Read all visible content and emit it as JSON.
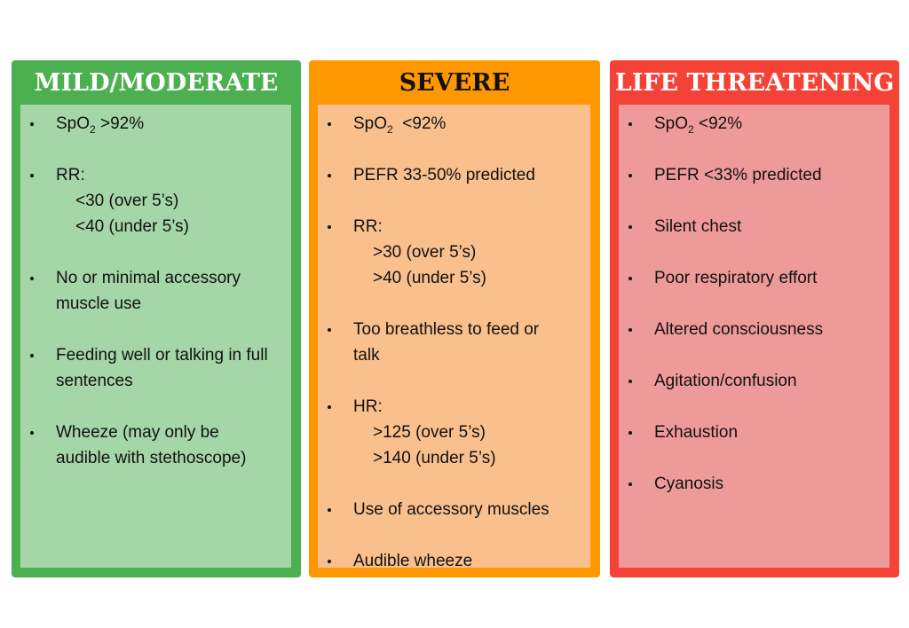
{
  "columns": [
    {
      "title": "MILD/MODERATE",
      "items": [
        {
          "text": "SpO",
          "subscript": "2",
          "text_after": " >92%"
        },
        {
          "text": "RR:",
          "lines": [
            "<30 (over 5’s)",
            "<40 (under 5’s)"
          ]
        },
        {
          "text": "No or minimal accessory muscle use"
        },
        {
          "text": "Feeding well or talking in full sentences"
        },
        {
          "text": "Wheeze (may only be audible with stethoscope)"
        }
      ]
    },
    {
      "title": "SEVERE",
      "items": [
        {
          "text": "SpO",
          "subscript": "2",
          "text_after": "  <92%"
        },
        {
          "text": "PEFR 33-50% predicted"
        },
        {
          "text": "RR:",
          "lines": [
            ">30 (over 5’s)",
            ">40 (under 5’s)"
          ]
        },
        {
          "text": "Too breathless to feed or talk"
        },
        {
          "text": "HR:",
          "lines": [
            ">125 (over 5’s)",
            ">140 (under 5’s)"
          ]
        },
        {
          "text": "Use of accessory muscles"
        },
        {
          "text": "Audible wheeze"
        }
      ]
    },
    {
      "title": "LIFE THREATENING",
      "items": [
        {
          "text": "SpO",
          "subscript": "2",
          "text_after": " <92%"
        },
        {
          "text": "PEFR <33% predicted"
        },
        {
          "text": "Silent chest"
        },
        {
          "text": "Poor respiratory effort"
        },
        {
          "text": "Altered consciousness"
        },
        {
          "text": "Agitation/confusion"
        },
        {
          "text": "Exhaustion"
        },
        {
          "text": "Cyanosis"
        }
      ]
    }
  ]
}
